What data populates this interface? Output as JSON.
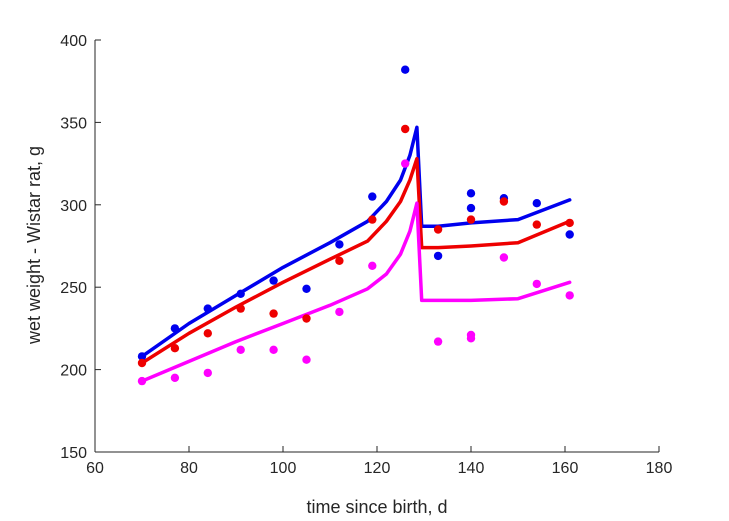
{
  "chart_data": {
    "type": "scatter",
    "xlabel": "time since birth, d",
    "ylabel": "wet weight - Wistar rat, g",
    "xlim": [
      60,
      180
    ],
    "ylim": [
      150,
      400
    ],
    "xticks": [
      60,
      80,
      100,
      120,
      140,
      160,
      180
    ],
    "yticks": [
      150,
      200,
      250,
      300,
      350,
      400
    ],
    "grid": false,
    "series": [
      {
        "color": "#0000ee",
        "points": [
          [
            70,
            208
          ],
          [
            77,
            225
          ],
          [
            84,
            237
          ],
          [
            91,
            246
          ],
          [
            98,
            254
          ],
          [
            105,
            249
          ],
          [
            112,
            276
          ],
          [
            119,
            305
          ],
          [
            126,
            382
          ],
          [
            133,
            269
          ],
          [
            140,
            307
          ],
          [
            140,
            298
          ],
          [
            147,
            304
          ],
          [
            154,
            301
          ],
          [
            161,
            282
          ]
        ],
        "line": [
          [
            70,
            208
          ],
          [
            80,
            228
          ],
          [
            90,
            245
          ],
          [
            100,
            262
          ],
          [
            110,
            277
          ],
          [
            118,
            290
          ],
          [
            122,
            302
          ],
          [
            125,
            315
          ],
          [
            127,
            330
          ],
          [
            128.5,
            347
          ],
          [
            129.5,
            287
          ],
          [
            133,
            287
          ],
          [
            140,
            289
          ],
          [
            150,
            291
          ],
          [
            161,
            303
          ]
        ]
      },
      {
        "color": "#ee0000",
        "points": [
          [
            70,
            204
          ],
          [
            77,
            213
          ],
          [
            84,
            222
          ],
          [
            91,
            237
          ],
          [
            98,
            234
          ],
          [
            105,
            231
          ],
          [
            112,
            266
          ],
          [
            119,
            291
          ],
          [
            126,
            346
          ],
          [
            133,
            285
          ],
          [
            140,
            291
          ],
          [
            147,
            302
          ],
          [
            154,
            288
          ],
          [
            161,
            289
          ]
        ],
        "line": [
          [
            70,
            204
          ],
          [
            80,
            222
          ],
          [
            90,
            238
          ],
          [
            100,
            253
          ],
          [
            110,
            267
          ],
          [
            118,
            278
          ],
          [
            122,
            290
          ],
          [
            125,
            302
          ],
          [
            127,
            315
          ],
          [
            128.5,
            328
          ],
          [
            129.5,
            274
          ],
          [
            133,
            274
          ],
          [
            140,
            275
          ],
          [
            150,
            277
          ],
          [
            161,
            290
          ]
        ]
      },
      {
        "color": "#ff00ff",
        "points": [
          [
            70,
            193
          ],
          [
            77,
            195
          ],
          [
            84,
            198
          ],
          [
            91,
            212
          ],
          [
            98,
            212
          ],
          [
            105,
            206
          ],
          [
            112,
            235
          ],
          [
            119,
            263
          ],
          [
            126,
            325
          ],
          [
            133,
            217
          ],
          [
            140,
            221
          ],
          [
            140,
            219
          ],
          [
            147,
            268
          ],
          [
            154,
            252
          ],
          [
            161,
            245
          ]
        ],
        "line": [
          [
            70,
            193
          ],
          [
            80,
            205
          ],
          [
            90,
            217
          ],
          [
            100,
            228
          ],
          [
            110,
            239
          ],
          [
            118,
            249
          ],
          [
            122,
            258
          ],
          [
            125,
            270
          ],
          [
            127,
            284
          ],
          [
            128.5,
            301
          ],
          [
            129.5,
            242
          ],
          [
            133,
            242
          ],
          [
            140,
            242
          ],
          [
            150,
            243
          ],
          [
            161,
            253
          ]
        ]
      }
    ]
  }
}
